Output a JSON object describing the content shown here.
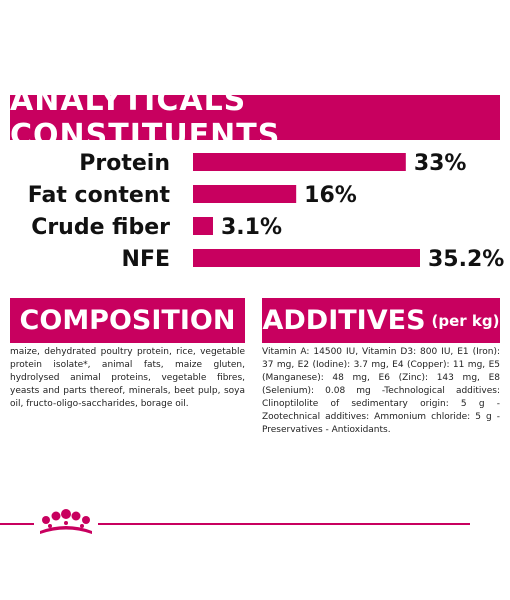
{
  "banner": {
    "title": "ANALYTICALS CONSTITUENTS"
  },
  "colors": {
    "brand": "#c8005f"
  },
  "chart_data": {
    "type": "bar",
    "orientation": "horizontal",
    "categories": [
      "Protein",
      "Fat content",
      "Crude fiber",
      "NFE"
    ],
    "values": [
      33,
      16,
      3.1,
      35.2
    ],
    "value_labels": [
      "33%",
      "16%",
      "3.1%",
      "35.2%"
    ],
    "unit": "%",
    "xlim": [
      0,
      35.2
    ],
    "bar_color": "#c8005f"
  },
  "composition": {
    "title": "COMPOSITION",
    "text": "maize, dehydrated poultry protein, rice, vegetable protein isolate*, animal fats, maize gluten, hydrolysed animal proteins, vegetable fibres, yeasts and parts thereof, minerals, beet pulp, soya oil, fructo-oligo-saccharides, borage oil."
  },
  "additives": {
    "title": "ADDITIVES",
    "suffix": "(per kg)",
    "text": "Vitamin A: 14500 IU, Vitamin D3: 800 IU, E1 (Iron): 37 mg, E2 (Iodine): 3.7 mg, E4 (Copper): 11 mg, E5 (Manganese): 48 mg, E6 (Zinc): 143 mg, E8 (Selenium): 0.08 mg -Technological additives: Clinoptilolite of sedimentary origin: 5 g - Zootechnical additives: Ammonium chloride: 5 g - Preservatives - Antioxidants."
  },
  "logo": {
    "icon": "royal-canin-crown-icon"
  }
}
